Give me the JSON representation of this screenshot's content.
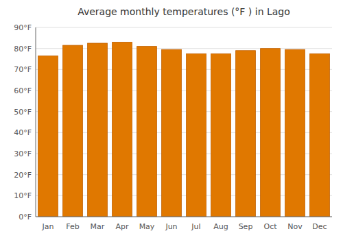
{
  "chart_data": {
    "type": "bar",
    "title": "Average monthly temperatures (°F ) in Lago",
    "categories": [
      "Jan",
      "Feb",
      "Mar",
      "Apr",
      "May",
      "Jun",
      "Jul",
      "Aug",
      "Sep",
      "Oct",
      "Nov",
      "Dec"
    ],
    "values": [
      76.5,
      81.5,
      82.5,
      83.0,
      81.0,
      79.5,
      77.5,
      77.5,
      79.0,
      80.0,
      79.5,
      77.5
    ],
    "color": "#E07800",
    "ylim": [
      0,
      90
    ],
    "yticks": [
      {
        "value": 0,
        "label": "0°F"
      },
      {
        "value": 10,
        "label": "10°F"
      },
      {
        "value": 20,
        "label": "20°F"
      },
      {
        "value": 30,
        "label": "30°F"
      },
      {
        "value": 40,
        "label": "40°F"
      },
      {
        "value": 50,
        "label": "50°F"
      },
      {
        "value": 60,
        "label": "60°F"
      },
      {
        "value": 70,
        "label": "70°F"
      },
      {
        "value": 80,
        "label": "80°F"
      },
      {
        "value": 90,
        "label": "90°F"
      }
    ],
    "grid": true
  }
}
